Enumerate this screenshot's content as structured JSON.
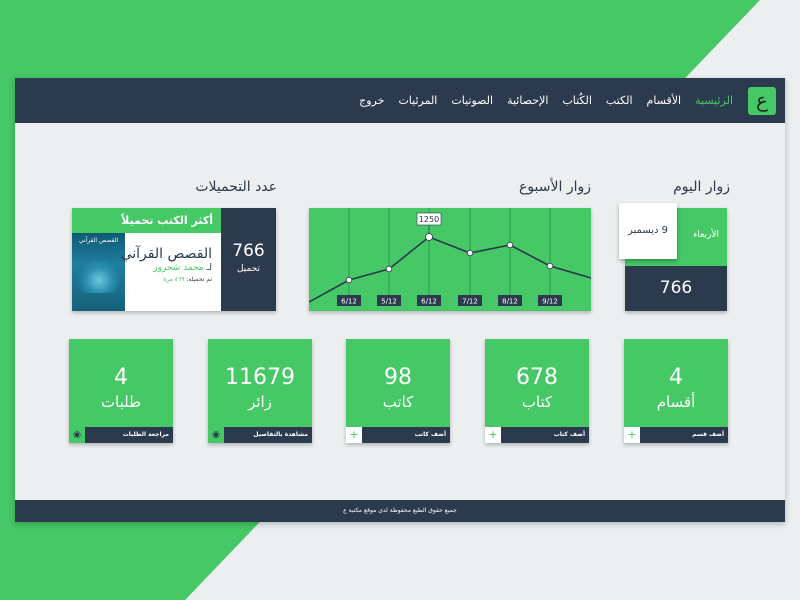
{
  "colors": {
    "brand_green": "#45c865",
    "navy": "#2b3a4d",
    "background": "#eceff0",
    "white": "#ffffff"
  },
  "logo": {
    "glyph": "ع"
  },
  "nav": {
    "items": [
      {
        "label": "الرئيسية",
        "active": true
      },
      {
        "label": "الأقسام"
      },
      {
        "label": "الكتب"
      },
      {
        "label": "الكُتاب"
      },
      {
        "label": "الإحصائية"
      },
      {
        "label": "الصوتيات"
      },
      {
        "label": "المرئيات"
      },
      {
        "label": "خروج"
      }
    ]
  },
  "today": {
    "title": "زوار اليوم",
    "day": "الأربعاء",
    "date": "9 ديسمبر",
    "count": "766"
  },
  "week": {
    "title": "زوار الأسبوع"
  },
  "chart_data": {
    "type": "line",
    "x": [
      "6/12",
      "5/12",
      "6/12",
      "7/12",
      "8/12",
      "9/12"
    ],
    "highlight": {
      "label": "1250"
    },
    "grid": true
  },
  "downloads": {
    "title": "عدد التحميلات",
    "header": "أكثر الكتب تحميلاً",
    "count": "766",
    "count_label": "تحميل",
    "book_title": "القصص القرآني",
    "author_prefix": "لـ",
    "author": "محمد شحرور",
    "downloads_prefix": "تم تحميله",
    "downloads_count": "٤٦٩ مرة",
    "cover_title": "القصص القرآني"
  },
  "stats": [
    {
      "value": "4",
      "label": "أقسام",
      "action": "أضف قسم",
      "icon": "plus-icon"
    },
    {
      "value": "678",
      "label": "كتاب",
      "action": "أضف كتاب",
      "icon": "plus-icon"
    },
    {
      "value": "98",
      "label": "كاتب",
      "action": "أضف كاتب",
      "icon": "plus-icon"
    },
    {
      "value": "11679",
      "label": "زائر",
      "action": "مشاهدة بالتفاصيل",
      "icon": "eye-icon"
    },
    {
      "value": "4",
      "label": "طلبات",
      "action": "مراجعة الطلبات",
      "icon": "eye-icon"
    }
  ],
  "footer": {
    "text": "جميع حقوق الطبع محفوظة لدى موقع مكتبة ع"
  }
}
